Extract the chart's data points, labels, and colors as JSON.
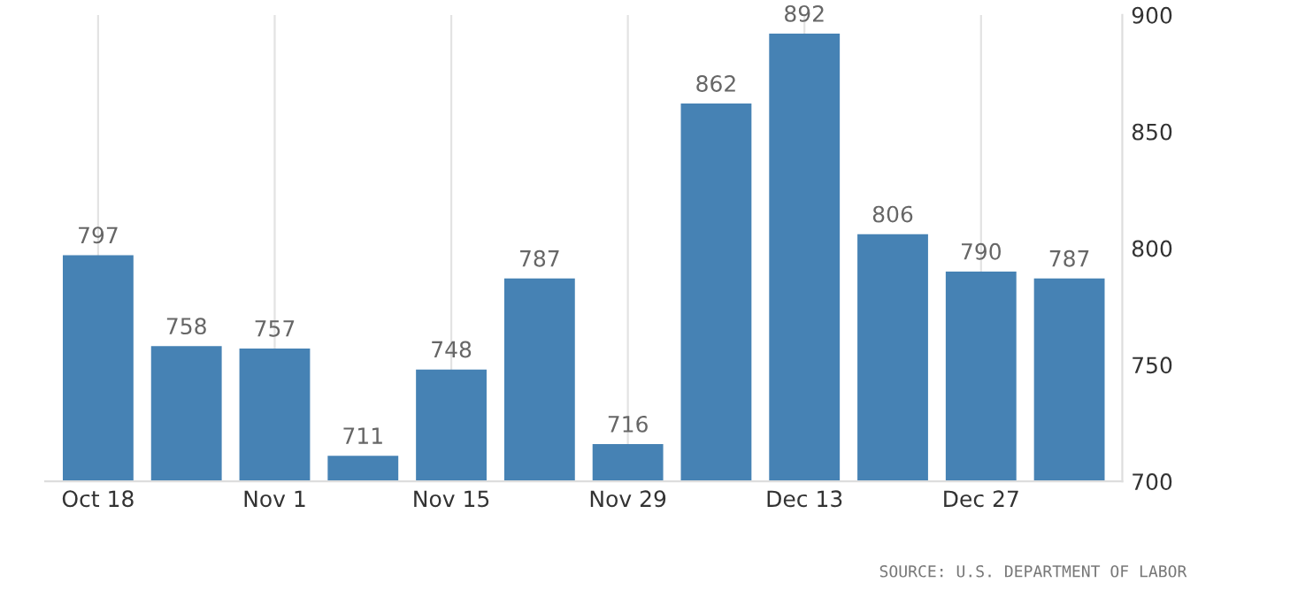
{
  "chart_data": {
    "type": "bar",
    "categories": [
      "Oct 18",
      null,
      "Nov 1",
      null,
      "Nov 15",
      null,
      "Nov 29",
      null,
      "Dec 13",
      null,
      "Dec 27",
      null
    ],
    "values": [
      797,
      758,
      757,
      711,
      748,
      787,
      716,
      862,
      892,
      806,
      790,
      787
    ],
    "color": "#4682b4",
    "ylim": [
      700,
      900
    ],
    "yticks": [
      700,
      750,
      800,
      850,
      900
    ],
    "grid": "x",
    "data_labels": true,
    "annotations": [
      "SOURCE: U.S. DEPARTMENT OF LABOR"
    ]
  }
}
